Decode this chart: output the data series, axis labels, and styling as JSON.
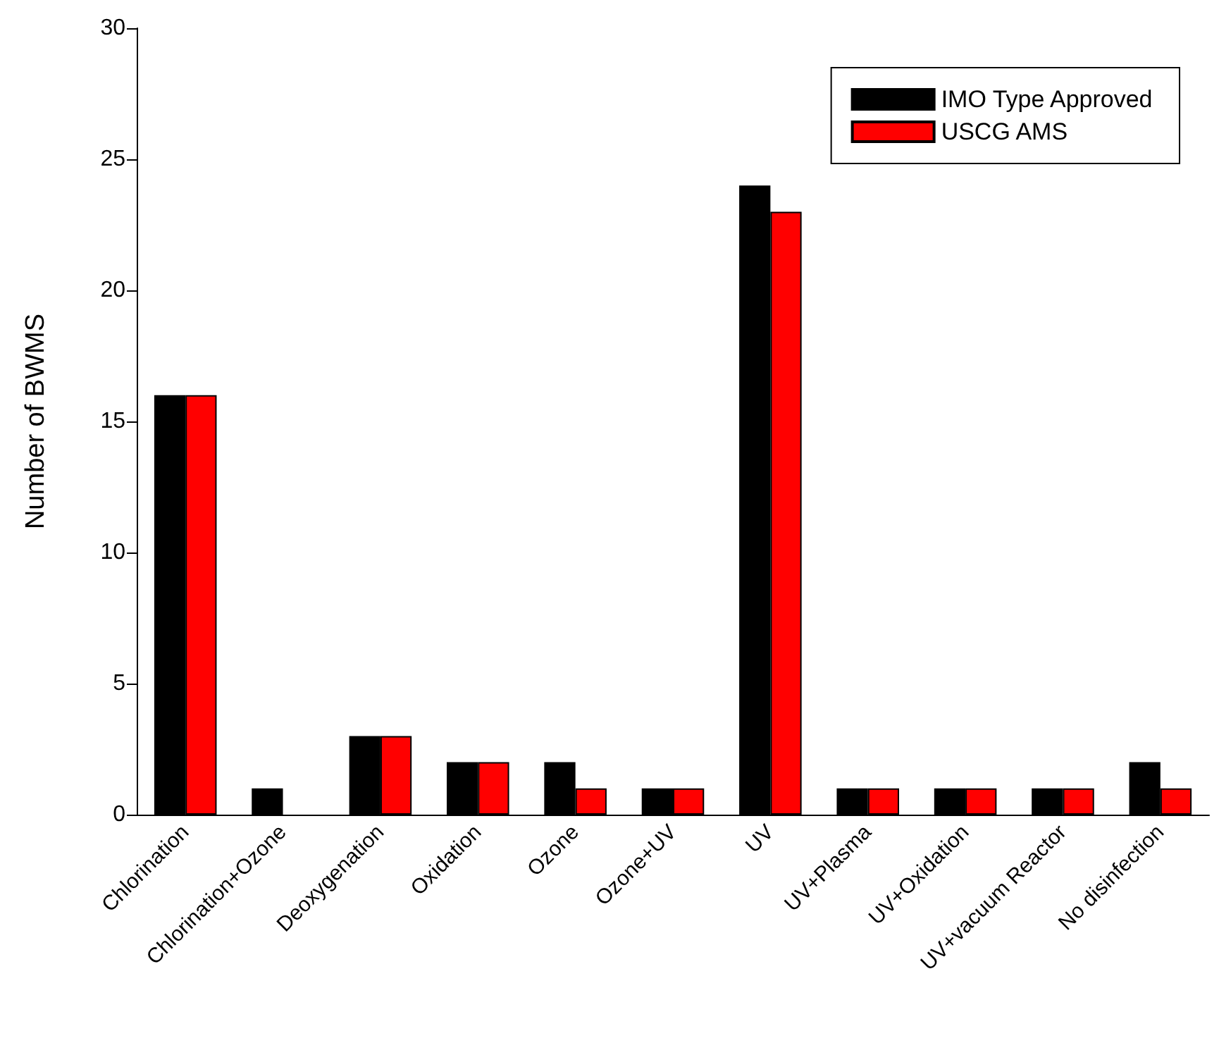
{
  "chart_data": {
    "type": "bar",
    "ylabel": "Number of BWMS",
    "categories": [
      "Chlorination",
      "Chlorination+Ozone",
      "Deoxygenation",
      "Oxidation",
      "Ozone",
      "Ozone+UV",
      "UV",
      "UV+Plasma",
      "UV+Oxidation",
      "UV+vacuum Reactor",
      "No disinfection"
    ],
    "series": [
      {
        "name": "IMO Type Approved",
        "color": "#000000",
        "values": [
          16,
          1,
          3,
          2,
          2,
          1,
          24,
          1,
          1,
          1,
          2
        ]
      },
      {
        "name": "USCG AMS",
        "color": "#ff0000",
        "values": [
          16,
          null,
          3,
          2,
          1,
          1,
          23,
          1,
          1,
          1,
          1
        ]
      }
    ],
    "ylim": [
      0,
      30
    ],
    "yticks": [
      0,
      5,
      10,
      15,
      20,
      25,
      30
    ],
    "grid": false,
    "legend": "top right"
  }
}
